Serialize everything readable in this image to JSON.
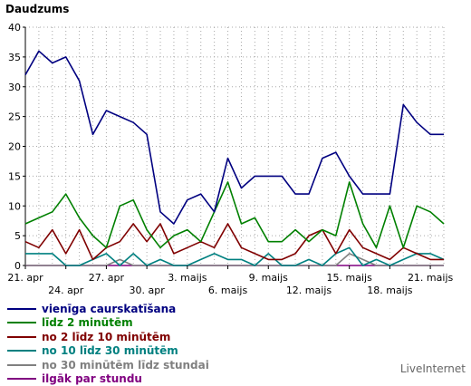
{
  "chart_data": {
    "type": "line",
    "title": "Daudzums",
    "ylim": [
      0,
      40
    ],
    "y_ticks": [
      "0",
      "5",
      "10",
      "15",
      "20",
      "25",
      "30",
      "35",
      "40"
    ],
    "x_ticks_top_row": [
      "21. apr",
      "27. apr",
      "3. maijs",
      "9. maijs",
      "15. maijs",
      "21. maijs"
    ],
    "x_ticks_bottom_row": [
      "24. apr",
      "30. apr",
      "6. maijs",
      "12. maijs",
      "18. maijs"
    ],
    "grid": true,
    "legend_position": "bottom-left",
    "x": [
      "21. apr",
      "22. apr",
      "23. apr",
      "24. apr",
      "25. apr",
      "26. apr",
      "27. apr",
      "28. apr",
      "29. apr",
      "30. apr",
      "1. maijs",
      "2. maijs",
      "3. maijs",
      "4. maijs",
      "5. maijs",
      "6. maijs",
      "7. maijs",
      "8. maijs",
      "9. maijs",
      "10. maijs",
      "11. maijs",
      "12. maijs",
      "13. maijs",
      "14. maijs",
      "15. maijs",
      "16. maijs",
      "17. maijs",
      "18. maijs",
      "19. maijs",
      "20. maijs",
      "21. maijs",
      "22. maijs"
    ],
    "series": [
      {
        "name": "vienīga caurskatīšana",
        "color": "#000080",
        "values": [
          32,
          36,
          34,
          35,
          31,
          22,
          26,
          25,
          24,
          22,
          9,
          7,
          11,
          12,
          9,
          18,
          13,
          15,
          15,
          15,
          12,
          12,
          18,
          19,
          15,
          12,
          12,
          12,
          27,
          24,
          22,
          22
        ]
      },
      {
        "name": "līdz 2 minūtēm",
        "color": "#008000",
        "values": [
          7,
          8,
          9,
          12,
          8,
          5,
          3,
          10,
          11,
          6,
          3,
          5,
          6,
          4,
          9,
          14,
          7,
          8,
          4,
          4,
          6,
          4,
          6,
          5,
          14,
          7,
          3,
          10,
          3,
          10,
          9,
          7
        ]
      },
      {
        "name": "no 2 līdz 10 minūtēm",
        "color": "#800000",
        "values": [
          4,
          3,
          6,
          2,
          6,
          1,
          3,
          4,
          7,
          4,
          7,
          2,
          3,
          4,
          3,
          7,
          3,
          2,
          1,
          1,
          2,
          5,
          6,
          2,
          6,
          3,
          2,
          1,
          3,
          2,
          1,
          1
        ]
      },
      {
        "name": "no 10 līdz 30 minūtēm",
        "color": "#008080",
        "values": [
          2,
          2,
          2,
          0,
          0,
          1,
          2,
          0,
          2,
          0,
          1,
          0,
          0,
          1,
          2,
          1,
          1,
          0,
          2,
          0,
          0,
          1,
          0,
          2,
          3,
          0,
          1,
          0,
          1,
          2,
          2,
          1
        ]
      },
      {
        "name": "no 30 minūtēm līdz stundai",
        "color": "#808080",
        "values": [
          0,
          0,
          0,
          0,
          0,
          0,
          0,
          1,
          0,
          0,
          0,
          0,
          0,
          0,
          0,
          0,
          0,
          0,
          0,
          0,
          0,
          0,
          0,
          0,
          2,
          1,
          0,
          0,
          0,
          0,
          0,
          0
        ]
      },
      {
        "name": "ilgāk par stundu",
        "color": "#800080",
        "values": [
          0,
          0,
          0,
          0,
          0,
          0,
          0,
          0,
          0,
          0,
          0,
          0,
          0,
          0,
          0,
          0,
          0,
          0,
          0,
          0,
          0,
          0,
          0,
          0,
          0,
          0,
          0,
          0,
          0,
          0,
          0,
          0
        ]
      }
    ]
  },
  "brand": "LiveInternet"
}
